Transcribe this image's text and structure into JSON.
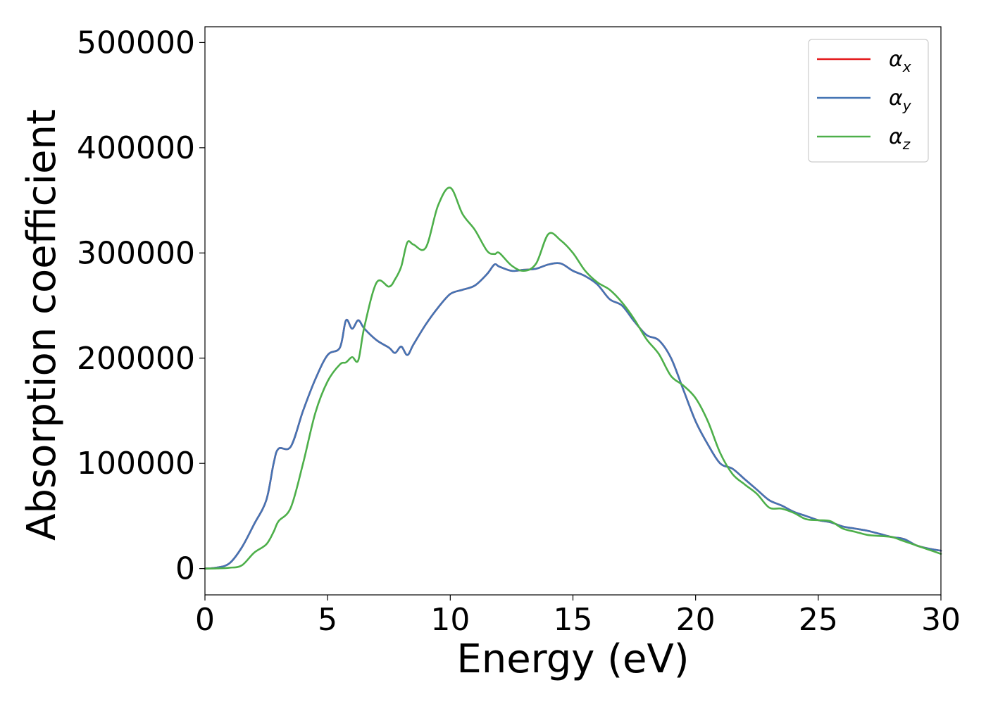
{
  "chart_data": {
    "type": "line",
    "xlabel": "Energy (eV)",
    "ylabel": "Absorption coefficient",
    "xlim": [
      0,
      30
    ],
    "ylim": [
      -25000,
      515000
    ],
    "xticks": [
      0,
      5,
      10,
      15,
      20,
      25,
      30
    ],
    "yticks": [
      0,
      100000,
      200000,
      300000,
      400000,
      500000
    ],
    "grid": false,
    "legend_position": "top-right",
    "x": [
      0,
      0.5,
      1,
      1.5,
      2,
      2.5,
      2.8,
      3,
      3.5,
      4,
      4.5,
      5,
      5.5,
      5.75,
      6,
      6.25,
      6.5,
      7,
      7.5,
      7.75,
      8,
      8.25,
      8.5,
      9,
      9.5,
      10,
      10.5,
      11,
      11.5,
      11.8,
      12,
      12.5,
      13,
      13.5,
      14,
      14.5,
      15,
      15.5,
      16,
      16.5,
      17,
      17.5,
      18,
      18.5,
      19,
      19.5,
      20,
      20.5,
      21,
      21.5,
      22,
      22.5,
      23,
      23.5,
      24,
      24.5,
      25,
      25.5,
      26,
      26.5,
      27,
      27.5,
      28,
      28.5,
      29,
      29.5,
      30
    ],
    "series": [
      {
        "name": "x",
        "color": "#e41a1c",
        "values": [
          0,
          1000,
          5000,
          20000,
          42000,
          65000,
          100000,
          114000,
          116000,
          150000,
          180000,
          203000,
          210000,
          236000,
          228000,
          236000,
          228000,
          217000,
          210000,
          205000,
          211000,
          203000,
          213000,
          232000,
          248000,
          261000,
          265000,
          269000,
          280000,
          289000,
          287000,
          283000,
          284000,
          285000,
          289000,
          290000,
          283000,
          278000,
          270000,
          256000,
          250000,
          235000,
          222000,
          217000,
          200000,
          170000,
          140000,
          118000,
          100000,
          95000,
          85000,
          75000,
          65000,
          60000,
          54000,
          50000,
          46000,
          44000,
          40000,
          38000,
          36000,
          33000,
          30000,
          28000,
          22000,
          19000,
          17000
        ]
      },
      {
        "name": "y",
        "color": "#4474b4",
        "values": [
          0,
          1000,
          5000,
          20000,
          42000,
          65000,
          100000,
          114000,
          116000,
          150000,
          180000,
          203000,
          210000,
          236000,
          228000,
          236000,
          228000,
          217000,
          210000,
          205000,
          211000,
          203000,
          213000,
          232000,
          248000,
          261000,
          265000,
          269000,
          280000,
          289000,
          287000,
          283000,
          284000,
          285000,
          289000,
          290000,
          283000,
          278000,
          270000,
          256000,
          250000,
          235000,
          222000,
          217000,
          200000,
          170000,
          140000,
          118000,
          100000,
          95000,
          85000,
          75000,
          65000,
          60000,
          54000,
          50000,
          46000,
          44000,
          40000,
          38000,
          36000,
          33000,
          30000,
          28000,
          22000,
          19000,
          17000
        ]
      },
      {
        "name": "z",
        "color": "#4daf4a",
        "values": [
          0,
          200,
          800,
          3000,
          15000,
          23000,
          35000,
          45000,
          58000,
          100000,
          148000,
          178000,
          194000,
          196000,
          201000,
          198000,
          230000,
          272000,
          268000,
          275000,
          287000,
          310000,
          308000,
          305000,
          345000,
          362000,
          337000,
          322000,
          302000,
          299000,
          300000,
          288000,
          283000,
          290000,
          318000,
          312000,
          300000,
          283000,
          272000,
          265000,
          253000,
          237000,
          218000,
          204000,
          183000,
          174000,
          162000,
          140000,
          110000,
          90000,
          80000,
          71000,
          58000,
          57000,
          53000,
          47000,
          46000,
          45000,
          38000,
          35000,
          32000,
          31000,
          30000,
          26000,
          22000,
          18000,
          14000
        ]
      }
    ]
  }
}
